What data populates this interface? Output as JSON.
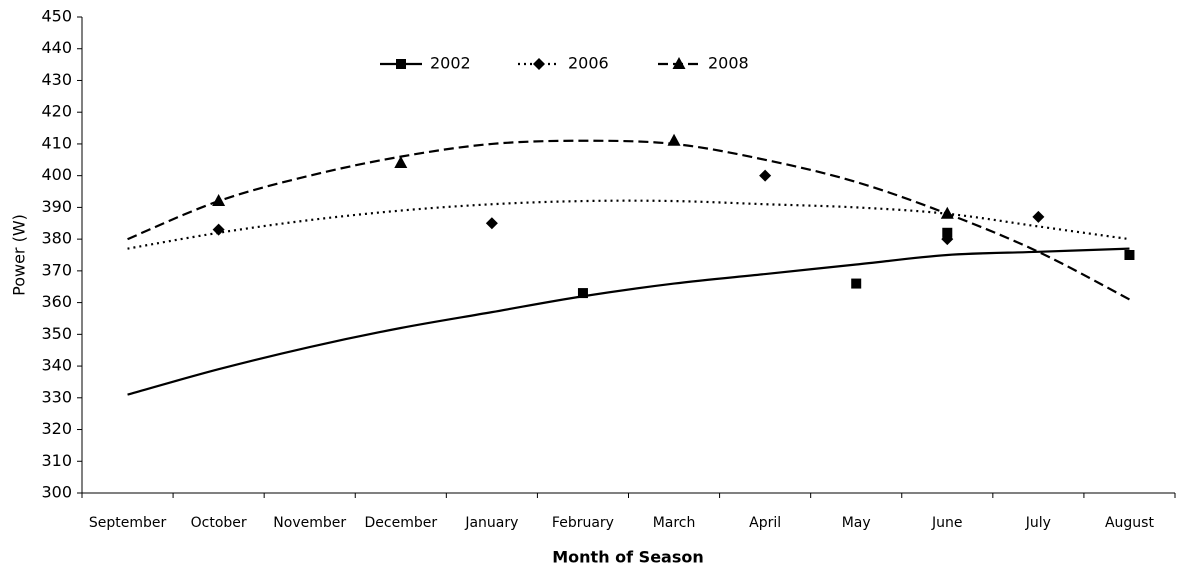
{
  "chart_data": {
    "type": "scatter-trend",
    "xlabel": "Month of Season",
    "ylabel": "Power (W)",
    "categories": [
      "September",
      "October",
      "November",
      "December",
      "January",
      "February",
      "March",
      "April",
      "May",
      "June",
      "July",
      "August"
    ],
    "ylim": [
      300,
      450
    ],
    "yticks": [
      300,
      310,
      320,
      330,
      340,
      350,
      360,
      370,
      380,
      390,
      400,
      410,
      420,
      430,
      440,
      450
    ],
    "grid": false,
    "legend": "top",
    "series": [
      {
        "name": "2002",
        "color": "#000000",
        "marker": "square",
        "dash": "solid",
        "values": [
          null,
          null,
          null,
          null,
          null,
          363,
          null,
          null,
          366,
          382,
          null,
          375
        ],
        "trend": [
          331,
          339,
          346,
          352,
          357,
          362,
          366,
          369,
          372,
          375,
          376,
          377
        ]
      },
      {
        "name": "2006",
        "color": "#000000",
        "marker": "diamond",
        "dash": "dotted",
        "values": [
          null,
          383,
          null,
          null,
          385,
          null,
          null,
          400,
          null,
          380,
          387,
          null
        ],
        "trend": [
          377,
          382,
          386,
          389,
          391,
          392,
          392,
          391,
          390,
          388,
          384,
          380
        ]
      },
      {
        "name": "2008",
        "color": "#000000",
        "marker": "triangle",
        "dash": "dashed",
        "values": [
          null,
          392,
          null,
          404,
          null,
          null,
          411,
          null,
          null,
          388,
          null,
          null
        ],
        "trend": [
          380,
          392,
          400,
          406,
          410,
          411,
          410,
          405,
          398,
          388,
          376,
          361
        ]
      }
    ]
  }
}
